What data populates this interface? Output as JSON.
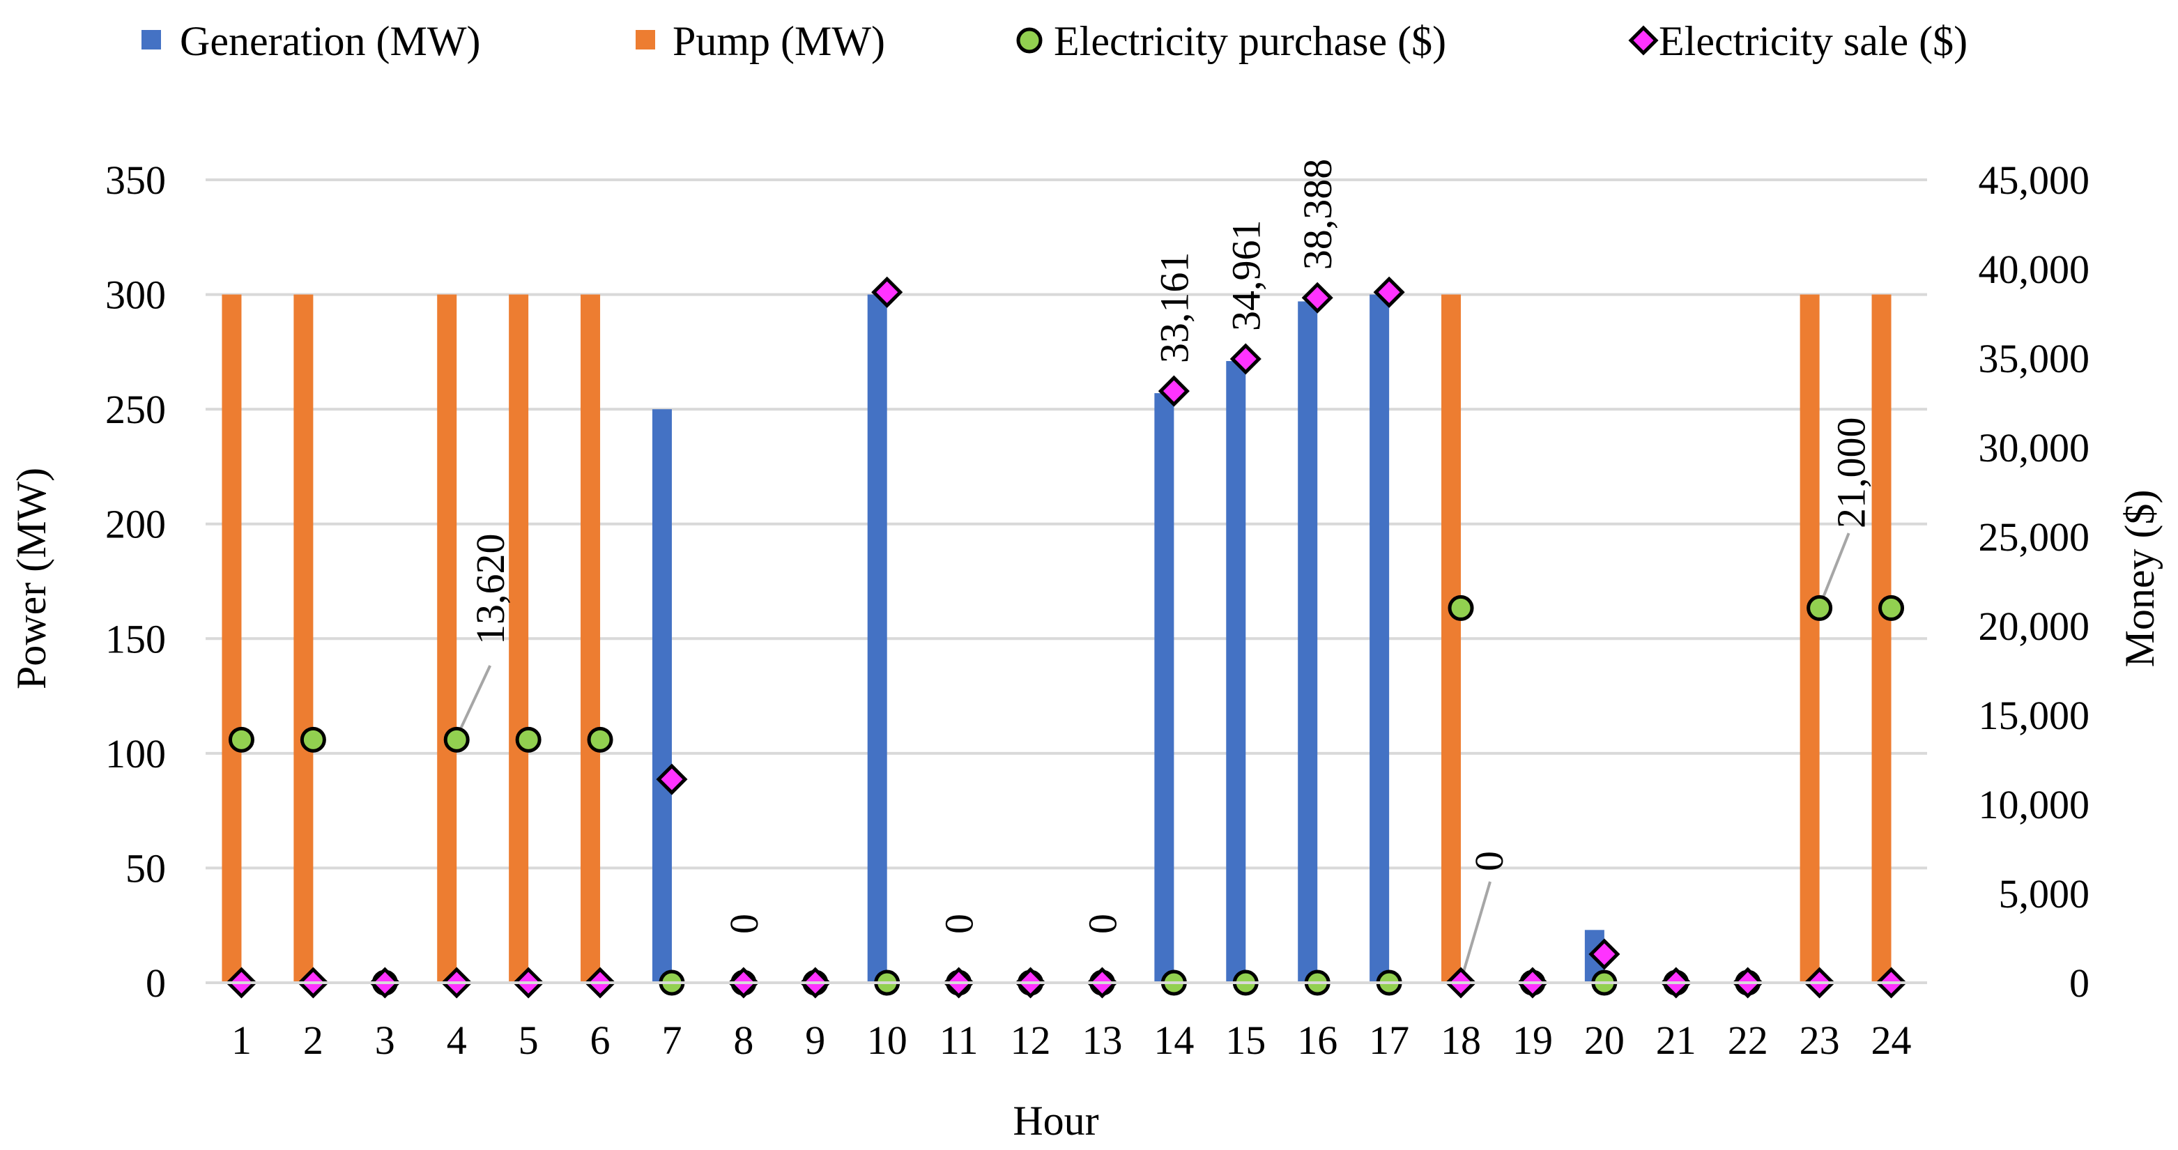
{
  "chart_data": {
    "type": "bar",
    "categories": [
      "1",
      "2",
      "3",
      "4",
      "5",
      "6",
      "7",
      "8",
      "9",
      "10",
      "11",
      "12",
      "13",
      "14",
      "15",
      "16",
      "17",
      "18",
      "19",
      "20",
      "21",
      "22",
      "23",
      "24"
    ],
    "xlabel": "Hour",
    "ylabel_left": "Power (MW)",
    "ylabel_right": "Money ($)",
    "ylim_left": [
      0,
      350
    ],
    "ylim_right": [
      0,
      45000
    ],
    "yticks_left": [
      "0",
      "50",
      "100",
      "150",
      "200",
      "250",
      "300",
      "350"
    ],
    "yticks_right": [
      "0",
      "5,000",
      "10,000",
      "15,000",
      "20,000",
      "25,000",
      "30,000",
      "35,000",
      "40,000",
      "45,000"
    ],
    "grid": true,
    "legend_position": "top",
    "bar_series": [
      {
        "name": "Generation (MW)",
        "color": "#4472C4",
        "values": [
          0,
          0,
          0,
          0,
          0,
          0,
          250,
          0,
          0,
          300,
          0,
          0,
          0,
          257,
          271,
          297,
          300,
          0,
          0,
          23,
          0,
          0,
          0,
          0
        ]
      },
      {
        "name": "Pump (MW)",
        "color": "#ED7D31",
        "values": [
          300,
          300,
          0,
          300,
          300,
          300,
          0,
          0,
          0,
          0,
          0,
          0,
          0,
          0,
          0,
          0,
          0,
          300,
          0,
          0,
          0,
          0,
          300,
          300
        ]
      }
    ],
    "marker_series": [
      {
        "name": "Electricity purchase ($)",
        "marker": "circle",
        "color": "#92D050",
        "values": [
          13620,
          13620,
          0,
          13620,
          13620,
          13620,
          0,
          0,
          0,
          0,
          0,
          0,
          0,
          0,
          0,
          0,
          0,
          21000,
          0,
          0,
          0,
          0,
          21000,
          21000
        ]
      },
      {
        "name": "Electricity sale ($)",
        "marker": "diamond",
        "color": "#FF33FF",
        "values": [
          0,
          0,
          0,
          0,
          0,
          0,
          11400,
          0,
          0,
          38700,
          0,
          0,
          0,
          33161,
          34961,
          38388,
          38700,
          0,
          0,
          1600,
          0,
          0,
          0,
          0
        ]
      }
    ],
    "annotations": [
      {
        "text": "13,620",
        "hour": 4,
        "callout": true
      },
      {
        "text": "0",
        "hour": 8,
        "callout": false
      },
      {
        "text": "0",
        "hour": 11,
        "callout": false
      },
      {
        "text": "0",
        "hour": 13,
        "callout": false
      },
      {
        "text": "33,161",
        "hour": 14,
        "callout": false
      },
      {
        "text": "34,961",
        "hour": 15,
        "callout": false
      },
      {
        "text": "38,388",
        "hour": 16,
        "callout": false
      },
      {
        "text": "0",
        "hour": 18,
        "callout": true
      },
      {
        "text": "21,000",
        "hour": 23,
        "callout": true
      }
    ]
  }
}
